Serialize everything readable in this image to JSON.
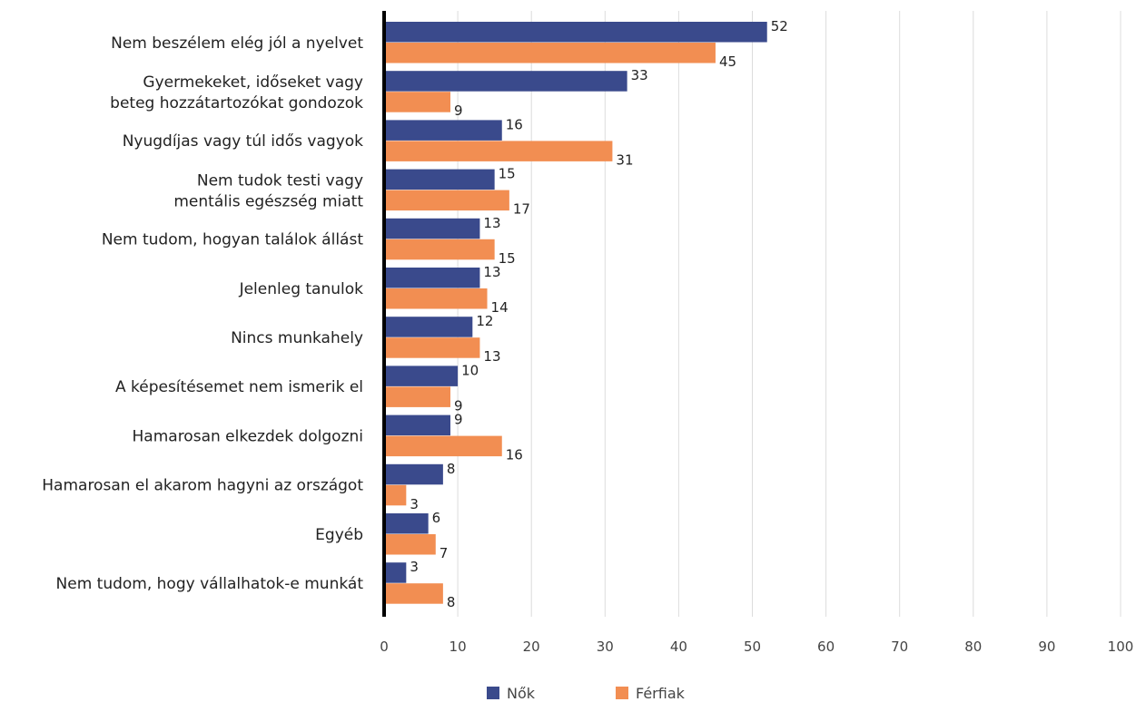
{
  "chart_data": {
    "type": "bar",
    "orientation": "horizontal",
    "categories": [
      [
        "Nem beszélem elég jól a nyelvet"
      ],
      [
        "Gyermekeket, időseket vagy",
        "beteg hozzátartozókat gondozok"
      ],
      [
        "Nyugdíjas vagy túl idős vagyok"
      ],
      [
        "Nem tudok testi vagy",
        "mentális egészség miatt"
      ],
      [
        "Nem tudom, hogyan találok állást"
      ],
      [
        "Jelenleg tanulok"
      ],
      [
        "Nincs munkahely"
      ],
      [
        "A képesítésemet nem ismerik el"
      ],
      [
        "Hamarosan elkezdek dolgozni"
      ],
      [
        "Hamarosan el akarom hagyni az országot"
      ],
      [
        "Egyéb"
      ],
      [
        "Nem tudom, hogy vállalhatok-e munkát"
      ]
    ],
    "series": [
      {
        "name": "Nők",
        "color": "#3a4a8c",
        "values": [
          52,
          33,
          16,
          15,
          13,
          13,
          12,
          10,
          9,
          8,
          6,
          3
        ]
      },
      {
        "name": "Férfiak",
        "color": "#f28e52",
        "values": [
          45,
          9,
          31,
          17,
          15,
          14,
          13,
          9,
          16,
          3,
          7,
          8
        ]
      }
    ],
    "xlim": [
      0,
      100
    ],
    "xticks": [
      "0",
      "10",
      "20",
      "30",
      "40",
      "50",
      "60",
      "70",
      "80",
      "90",
      "100"
    ],
    "grid": true,
    "legend_position": "bottom-center",
    "axis_color": "#000000",
    "grid_color": "#dcdcdc"
  }
}
